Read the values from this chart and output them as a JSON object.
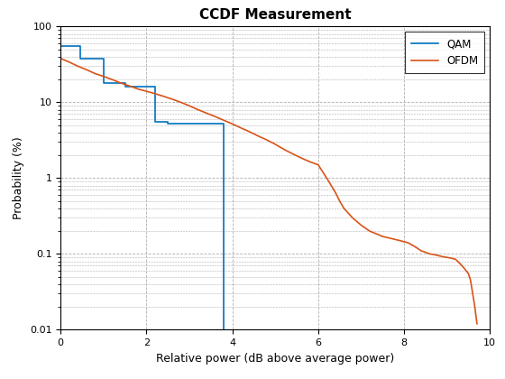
{
  "title": "CCDF Measurement",
  "xlabel": "Relative power (dB above average power)",
  "ylabel": "Probability (%)",
  "xlim": [
    0,
    10
  ],
  "ylim_log": [
    0.01,
    100
  ],
  "qam_color": "#0072BD",
  "ofdm_color": "#D95319",
  "qam_x": [
    0.0,
    0.45,
    0.45,
    1.0,
    1.0,
    1.5,
    1.5,
    2.2,
    2.2,
    2.5,
    2.5,
    3.8,
    3.8
  ],
  "qam_y": [
    55,
    55,
    38,
    38,
    18,
    18,
    16,
    16,
    5.5,
    5.5,
    5.2,
    5.2,
    0.01
  ],
  "ofdm_x": [
    0.0,
    0.2,
    0.4,
    0.6,
    0.8,
    1.0,
    1.2,
    1.4,
    1.6,
    1.8,
    2.0,
    2.2,
    2.4,
    2.6,
    2.8,
    3.0,
    3.2,
    3.4,
    3.6,
    3.8,
    4.0,
    4.2,
    4.4,
    4.6,
    4.8,
    5.0,
    5.2,
    5.4,
    5.6,
    5.8,
    6.0,
    6.2,
    6.4,
    6.5,
    6.6,
    6.8,
    7.0,
    7.2,
    7.4,
    7.5,
    7.6,
    7.7,
    7.8,
    7.9,
    8.0,
    8.1,
    8.2,
    8.3,
    8.4,
    8.5,
    8.6,
    8.7,
    8.8,
    8.9,
    9.0,
    9.1,
    9.2,
    9.3,
    9.4,
    9.5,
    9.55,
    9.6,
    9.65,
    9.7
  ],
  "ofdm_y": [
    38,
    34,
    30,
    27,
    24,
    22,
    20,
    18,
    16.5,
    15,
    14,
    13,
    12,
    11,
    10,
    9.0,
    8.0,
    7.2,
    6.5,
    5.8,
    5.2,
    4.6,
    4.1,
    3.6,
    3.2,
    2.8,
    2.4,
    2.1,
    1.85,
    1.65,
    1.5,
    1.0,
    0.65,
    0.5,
    0.4,
    0.3,
    0.24,
    0.2,
    0.18,
    0.17,
    0.165,
    0.16,
    0.155,
    0.15,
    0.145,
    0.14,
    0.13,
    0.12,
    0.11,
    0.105,
    0.1,
    0.098,
    0.095,
    0.092,
    0.09,
    0.088,
    0.085,
    0.075,
    0.065,
    0.055,
    0.045,
    0.03,
    0.02,
    0.012
  ],
  "legend_labels": [
    "QAM",
    "OFDM"
  ],
  "background_color": "#ffffff",
  "grid_color": "#b0b0b0"
}
